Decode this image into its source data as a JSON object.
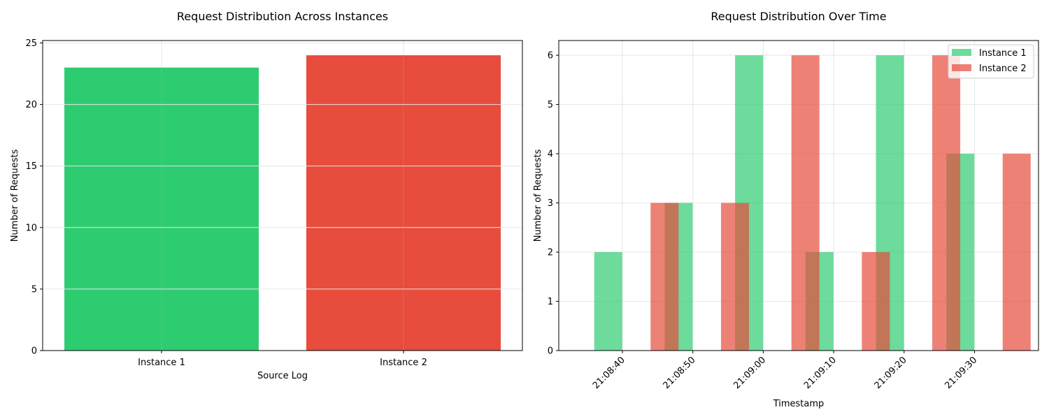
{
  "chart_data": [
    {
      "type": "bar",
      "title": "Request Distribution Across Instances",
      "xlabel": "Source Log",
      "ylabel": "Number of Requests",
      "categories": [
        "Instance 1",
        "Instance 2"
      ],
      "values": [
        23,
        24
      ],
      "colors": [
        "#2ecc71",
        "#e74c3c"
      ],
      "ylim": [
        0,
        25.2
      ],
      "yticks": [
        0,
        5,
        10,
        15,
        20,
        25
      ],
      "grid": true
    },
    {
      "type": "bar",
      "title": "Request Distribution Over Time",
      "xlabel": "Timestamp",
      "ylabel": "Number of Requests",
      "ylim": [
        0,
        6.3
      ],
      "yticks": [
        0,
        1,
        2,
        3,
        4,
        5,
        6
      ],
      "xticks": [
        "21:08:40",
        "21:08:50",
        "21:09:00",
        "21:09:10",
        "21:09:20",
        "21:09:30"
      ],
      "grid": true,
      "legend": "top-right",
      "series": [
        {
          "name": "Instance 1",
          "color": "#2ecc71",
          "points": [
            {
              "time": "21:08:36",
              "value": 2
            },
            {
              "time": "21:08:46",
              "value": 3
            },
            {
              "time": "21:08:56",
              "value": 6
            },
            {
              "time": "21:09:06",
              "value": 2
            },
            {
              "time": "21:09:16",
              "value": 6
            },
            {
              "time": "21:09:26",
              "value": 4
            }
          ]
        },
        {
          "name": "Instance 2",
          "color": "#e74c3c",
          "points": [
            {
              "time": "21:08:44",
              "value": 3
            },
            {
              "time": "21:08:54",
              "value": 3
            },
            {
              "time": "21:09:04",
              "value": 6
            },
            {
              "time": "21:09:14",
              "value": 2
            },
            {
              "time": "21:09:24",
              "value": 6
            },
            {
              "time": "21:09:34",
              "value": 4
            }
          ]
        }
      ]
    }
  ]
}
